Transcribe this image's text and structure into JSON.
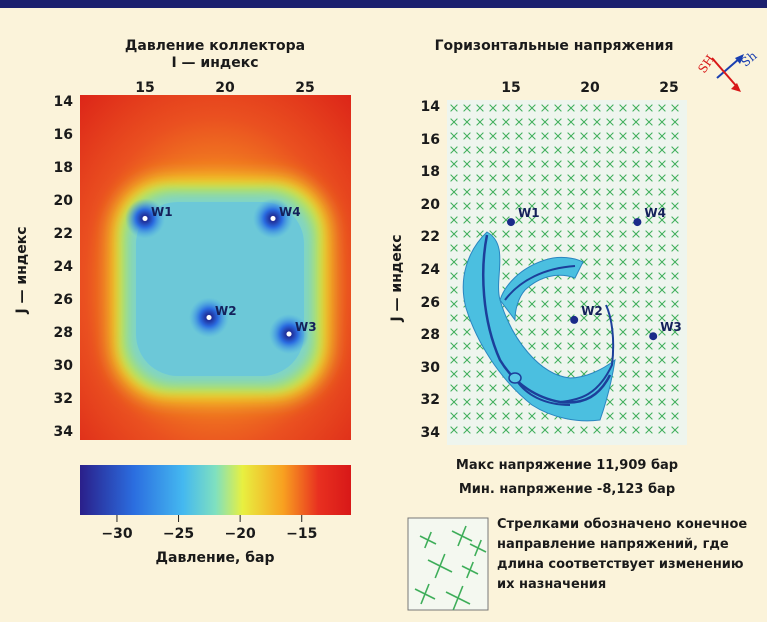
{
  "left_panel": {
    "title": "Давление коллектора",
    "subtitle": "I — индекс",
    "x_ticks": [
      "15",
      "20",
      "25"
    ],
    "y_ticks": [
      "14",
      "16",
      "18",
      "20",
      "22",
      "24",
      "26",
      "28",
      "30",
      "32",
      "34"
    ],
    "y_label": "J — индекс",
    "wells": [
      {
        "name": "W1",
        "i": 15,
        "j": 21
      },
      {
        "name": "W4",
        "i": 23,
        "j": 21
      },
      {
        "name": "W2",
        "i": 19,
        "j": 27
      },
      {
        "name": "W3",
        "i": 24,
        "j": 28
      }
    ]
  },
  "colorbar": {
    "ticks": [
      "−30",
      "−25",
      "−20",
      "−15"
    ],
    "label": "Давление, бар",
    "colors": [
      "#2a1f8a",
      "#2b6ee0",
      "#44b8f0",
      "#7fe0c0",
      "#e8f040",
      "#f8a020",
      "#e83020",
      "#d81818"
    ]
  },
  "right_panel": {
    "title": "Горизонтальные напряжения",
    "x_ticks": [
      "15",
      "20",
      "25"
    ],
    "y_ticks": [
      "14",
      "16",
      "18",
      "20",
      "22",
      "24",
      "26",
      "28",
      "30",
      "32",
      "34"
    ],
    "y_label": "J — индекс",
    "wells": [
      {
        "name": "W1",
        "i": 15,
        "j": 21
      },
      {
        "name": "W4",
        "i": 23,
        "j": 21
      },
      {
        "name": "W2",
        "i": 19,
        "j": 27
      },
      {
        "name": "W3",
        "i": 24,
        "j": 28
      }
    ],
    "compass": {
      "sh_major": "SH",
      "sh_minor": "Sh"
    },
    "max_stress": "Макс напряжение 11,909 бар",
    "min_stress": "Мин. напряжение -8,123 бар"
  },
  "legend_note": "Стрелками обозначено конечное направление напряжений, где длина соответствует изменению их назначения",
  "colors": {
    "background": "#fbf3da",
    "topbar": "#1b1f6e",
    "fracture_fill": "#4bbfe0",
    "fracture_line": "#1c3f9a",
    "well_dot": "#1b2a8a",
    "stress_cross": "#3fae5a"
  }
}
